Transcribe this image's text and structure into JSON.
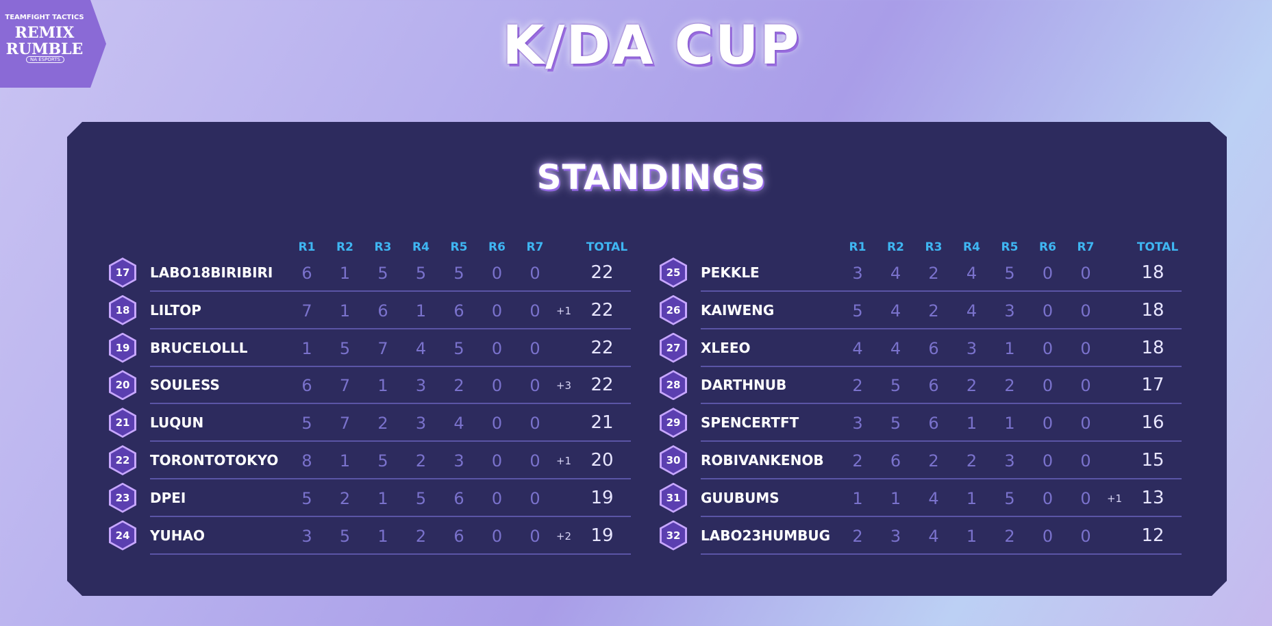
{
  "logo": {
    "line1": "TEAMFIGHT TACTICS",
    "line2": "REMIX RUMBLE",
    "line3": "NA ESPORTS"
  },
  "title": "K/DA CUP",
  "standings": {
    "heading": "STANDINGS",
    "tables": [
      {
        "headers": [
          "R1",
          "R2",
          "R3",
          "R4",
          "R5",
          "R6",
          "R7",
          "TOTAL"
        ],
        "rows": [
          {
            "rank": 17,
            "name": "LABO18BIRIBIRI",
            "rounds": [
              6,
              1,
              5,
              5,
              5,
              0,
              0
            ],
            "total": 22
          },
          {
            "rank": 18,
            "name": "LILTOP",
            "rounds": [
              7,
              1,
              6,
              1,
              6,
              0,
              0
            ],
            "bonus": "+1",
            "total": 22
          },
          {
            "rank": 19,
            "name": "BRUCELOLLL",
            "rounds": [
              1,
              5,
              7,
              4,
              5,
              0,
              0
            ],
            "total": 22
          },
          {
            "rank": 20,
            "name": "SOULESS",
            "rounds": [
              6,
              7,
              1,
              3,
              2,
              0,
              0
            ],
            "bonus": "+3",
            "total": 22
          },
          {
            "rank": 21,
            "name": "LUQUN",
            "rounds": [
              5,
              7,
              2,
              3,
              4,
              0,
              0
            ],
            "total": 21
          },
          {
            "rank": 22,
            "name": "TORONTOTOKYO",
            "rounds": [
              8,
              1,
              5,
              2,
              3,
              0,
              0
            ],
            "bonus": "+1",
            "total": 20
          },
          {
            "rank": 23,
            "name": "DPEI",
            "rounds": [
              5,
              2,
              1,
              5,
              6,
              0,
              0
            ],
            "total": 19
          },
          {
            "rank": 24,
            "name": "YUHAO",
            "rounds": [
              3,
              5,
              1,
              2,
              6,
              0,
              0
            ],
            "bonus": "+2",
            "total": 19
          }
        ]
      },
      {
        "headers": [
          "R1",
          "R2",
          "R3",
          "R4",
          "R5",
          "R6",
          "R7",
          "TOTAL"
        ],
        "rows": [
          {
            "rank": 25,
            "name": "PEKKLE",
            "rounds": [
              3,
              4,
              2,
              4,
              5,
              0,
              0
            ],
            "total": 18
          },
          {
            "rank": 26,
            "name": "KAIWENG",
            "rounds": [
              5,
              4,
              2,
              4,
              3,
              0,
              0
            ],
            "total": 18
          },
          {
            "rank": 27,
            "name": "XLEEO",
            "rounds": [
              4,
              4,
              6,
              3,
              1,
              0,
              0
            ],
            "total": 18
          },
          {
            "rank": 28,
            "name": "DARTHNUB",
            "rounds": [
              2,
              5,
              6,
              2,
              2,
              0,
              0
            ],
            "total": 17
          },
          {
            "rank": 29,
            "name": "SPENCERTFT",
            "rounds": [
              3,
              5,
              6,
              1,
              1,
              0,
              0
            ],
            "total": 16
          },
          {
            "rank": 30,
            "name": "ROBIVANKENOB",
            "rounds": [
              2,
              6,
              2,
              2,
              3,
              0,
              0
            ],
            "total": 15
          },
          {
            "rank": 31,
            "name": "GUUBUMS",
            "rounds": [
              1,
              1,
              4,
              1,
              5,
              0,
              0
            ],
            "bonus": "+1",
            "total": 13
          },
          {
            "rank": 32,
            "name": "LABO23HUMBUG",
            "rounds": [
              2,
              3,
              4,
              1,
              2,
              0,
              0
            ],
            "total": 12
          }
        ]
      }
    ]
  }
}
